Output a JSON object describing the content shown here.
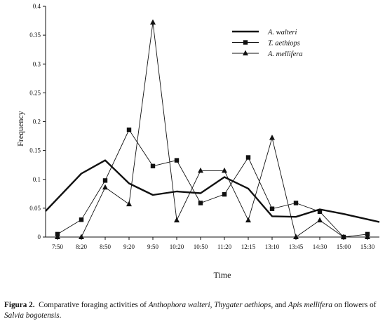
{
  "chart_data": {
    "type": "line",
    "title": "",
    "xlabel": "Time",
    "ylabel": "Frequency",
    "categories": [
      "7:50",
      "8:20",
      "8:50",
      "9:20",
      "9:50",
      "10:20",
      "10:50",
      "11:20",
      "12:15",
      "13:10",
      "13:45",
      "14:30",
      "15:00",
      "15:30"
    ],
    "y_ticks": [
      "0",
      "0.05",
      "0.1",
      "0.15",
      "0.2",
      "0.25",
      "0.3",
      "0.35",
      "0.4"
    ],
    "ylim": [
      0,
      0.4
    ],
    "grid": false,
    "legend_placement": "top-right",
    "series": [
      {
        "name": "A. walteri",
        "marker": "none",
        "style": "thick-line",
        "values": [
          0.045,
          0.11,
          0.133,
          0.093,
          0.073,
          0.079,
          0.076,
          0.104,
          0.084,
          0.036,
          0.035,
          0.048,
          0.04,
          0.026
        ],
        "edge_values": {
          "start": 0.045,
          "end": 0.026
        }
      },
      {
        "name": "T. aethiops",
        "marker": "square",
        "style": "thin-line",
        "values": [
          0.005,
          0.03,
          0.098,
          0.186,
          0.123,
          0.133,
          0.059,
          0.074,
          0.138,
          0.049,
          0.059,
          0.044,
          0.0,
          0.005
        ]
      },
      {
        "name": "A. mellifera",
        "marker": "triangle",
        "style": "thin-line",
        "values": [
          0.0,
          0.0,
          0.086,
          0.057,
          0.372,
          0.029,
          0.115,
          0.115,
          0.029,
          0.172,
          0.0,
          0.029,
          0.0,
          0.0
        ]
      }
    ]
  },
  "caption": {
    "label": "Figura 2.",
    "t1": "Comparative foraging activities of",
    "i1": "Anthophora walteri",
    "t2": ",",
    "i2": "Thygater aethiops",
    "t3": ", and",
    "i3": "Apis mellifera",
    "t4": "on flowers of",
    "i4": "Salvia bogotensis",
    "t5": "."
  },
  "colors": {
    "ink": "#111111",
    "background": "#ffffff"
  }
}
